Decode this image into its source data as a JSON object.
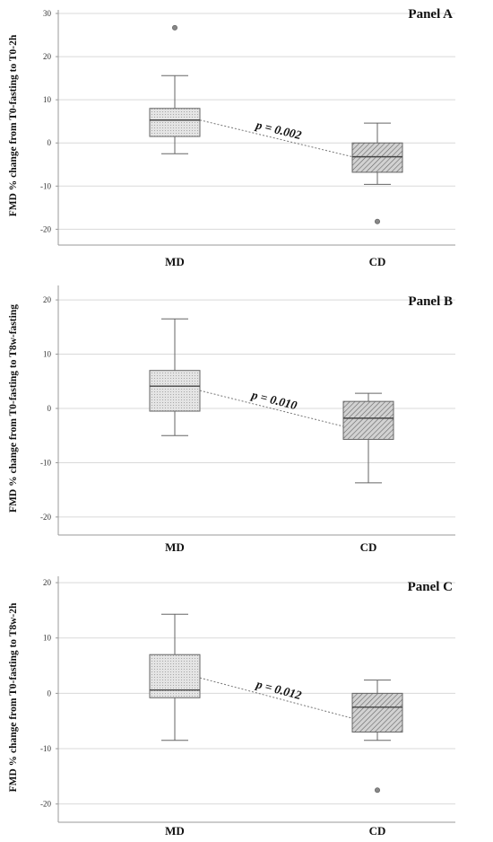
{
  "chart_data": [
    {
      "type": "box",
      "title": "Panel A",
      "ylabel": "FMD % change from T0-fasting to T0-2h",
      "categories": [
        "MD",
        "CD"
      ],
      "ylim": [
        -22,
        30
      ],
      "yticks": [
        -20,
        -10,
        0,
        10,
        20,
        30
      ],
      "grid": true,
      "boxes": [
        {
          "category": "MD",
          "min": -2.5,
          "q1": 1.5,
          "median": 5.3,
          "q3": 8.0,
          "max": 15.6,
          "outliers": [
            26.7
          ],
          "fill": "dotted",
          "fill_color": "#dcdcdc"
        },
        {
          "category": "CD",
          "min": -9.6,
          "q1": -6.8,
          "median": -3.2,
          "q3": 0.0,
          "max": 4.6,
          "outliers": [
            -18.2
          ],
          "fill": "hatched",
          "fill_color": "#bdbdbd"
        }
      ],
      "annotation": {
        "text": "p = 0.002",
        "from": 5.3,
        "to": -3.2
      }
    },
    {
      "type": "box",
      "title": "Panel B",
      "ylabel": "FMD % change from T0-fasting to T8w-fasting",
      "categories": [
        "MD",
        "CD"
      ],
      "ylim": [
        -22,
        22
      ],
      "yticks": [
        -20,
        -10,
        0,
        10,
        20
      ],
      "grid": true,
      "boxes": [
        {
          "category": "MD",
          "min": -5.0,
          "q1": -0.5,
          "median": 4.1,
          "q3": 7.0,
          "max": 16.5,
          "outliers": [],
          "fill": "dotted",
          "fill_color": "#dcdcdc"
        },
        {
          "category": "CD",
          "min": -13.7,
          "q1": -5.7,
          "median": -1.8,
          "q3": 1.3,
          "max": 2.8,
          "outliers": [],
          "fill": "hatched",
          "fill_color": "#bdbdbd"
        }
      ],
      "annotation": {
        "text": "p = 0.010",
        "from": 3.3,
        "to": -3.3
      }
    },
    {
      "type": "box",
      "title": "Panel C",
      "ylabel": "FMD % change from T0-fasting to T8w-2h",
      "categories": [
        "MD",
        "CD"
      ],
      "ylim": [
        -22,
        20.5
      ],
      "yticks": [
        -20,
        -10,
        0,
        10,
        20
      ],
      "grid": true,
      "boxes": [
        {
          "category": "MD",
          "min": -8.5,
          "q1": -0.8,
          "median": 0.6,
          "q3": 7.0,
          "max": 14.3,
          "outliers": [],
          "fill": "dotted",
          "fill_color": "#dcdcdc"
        },
        {
          "category": "CD",
          "min": -8.5,
          "q1": -7.0,
          "median": -2.5,
          "q3": 0.0,
          "max": 2.4,
          "outliers": [
            -17.5
          ],
          "fill": "hatched",
          "fill_color": "#bdbdbd"
        }
      ],
      "annotation": {
        "text": "p = 0.012",
        "from": 2.8,
        "to": -4.5
      }
    }
  ]
}
